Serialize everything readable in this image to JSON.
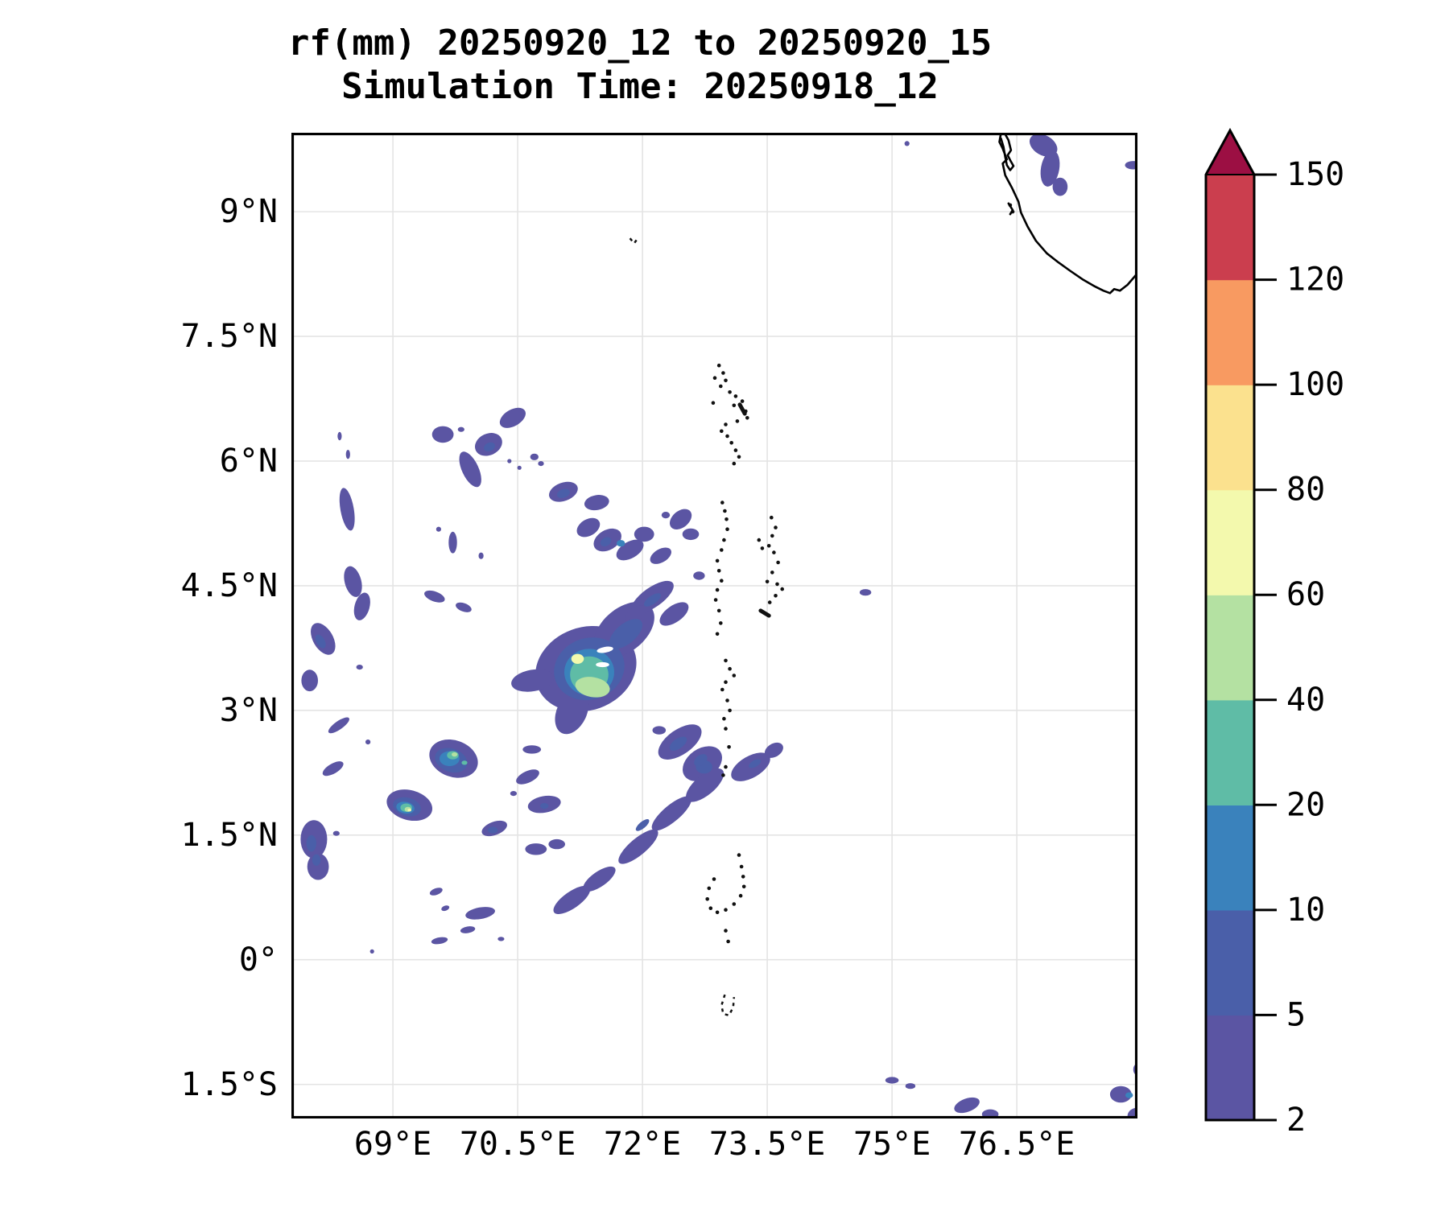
{
  "title": {
    "line1": "rf(mm) 20250920_12 to 20250920_15",
    "line2": "Simulation Time: 20250918_12"
  },
  "axes": {
    "x_ticks": [
      {
        "label": "69°E",
        "lon": 69.0
      },
      {
        "label": "70.5°E",
        "lon": 70.5
      },
      {
        "label": "72°E",
        "lon": 72.0
      },
      {
        "label": "73.5°E",
        "lon": 73.5
      },
      {
        "label": "75°E",
        "lon": 75.0
      },
      {
        "label": "76.5°E",
        "lon": 76.5
      }
    ],
    "y_ticks": [
      {
        "label": "9°N",
        "lat": 9.0
      },
      {
        "label": "7.5°N",
        "lat": 7.5
      },
      {
        "label": "6°N",
        "lat": 6.0
      },
      {
        "label": "4.5°N",
        "lat": 4.5
      },
      {
        "label": "3°N",
        "lat": 3.0
      },
      {
        "label": "1.5°N",
        "lat": 1.5
      },
      {
        "label": "0°",
        "lat": 0.0
      },
      {
        "label": "1.5°S",
        "lat": -1.5
      }
    ],
    "grid_color": "#e4e4e4",
    "frame_color": "#000000"
  },
  "colorbar": {
    "levels": [
      2,
      5,
      10,
      20,
      40,
      60,
      80,
      100,
      120,
      150
    ],
    "tick_labels": [
      "150",
      "120",
      "100",
      "80",
      "60",
      "40",
      "20",
      "10",
      "5",
      "2"
    ],
    "colors": [
      "#5b55a3",
      "#4a5fa9",
      "#3a82bc",
      "#5fbca6",
      "#b4e1a2",
      "#f3f9ad",
      "#fbe18e",
      "#f89a61",
      "#cb3e4e"
    ],
    "over_color": "#9c0f43",
    "outline_color": "#000000"
  },
  "chart_data": {
    "type": "heatmap",
    "variable": "rf",
    "units": "mm",
    "title": "rf(mm) 20250920_12 to 20250920_15",
    "subtitle": "Simulation Time: 20250918_12",
    "extent": {
      "lon_min": 67.78,
      "lon_max": 77.95,
      "lat_min": -1.91,
      "lat_max": 9.95
    },
    "levels": [
      2,
      5,
      10,
      20,
      40,
      60,
      80,
      100,
      120,
      150
    ],
    "max_cell": {
      "lon": 71.22,
      "lat": 3.62,
      "approx_mm": 70
    },
    "blob_format": "[lon, lat, rx_deg, ry_deg, rot_deg, level_index] level_index: 0=2-5mm,1=5-10mm,2=10-20mm,3=20-40mm,4=40-60mm,5=60-80mm,99=white hole",
    "blobs": [
      [
        76.82,
        9.8,
        0.18,
        0.12,
        -30,
        0
      ],
      [
        76.9,
        9.52,
        0.11,
        0.22,
        -10,
        0
      ],
      [
        77.02,
        9.3,
        0.09,
        0.11,
        0,
        0
      ],
      [
        75.18,
        9.82,
        0.03,
        0.03,
        0,
        0
      ],
      [
        77.9,
        9.56,
        0.1,
        0.05,
        0,
        0
      ],
      [
        74.68,
        4.42,
        0.07,
        0.04,
        0,
        0
      ],
      [
        69.6,
        6.32,
        0.13,
        0.1,
        0,
        0
      ],
      [
        69.82,
        6.38,
        0.04,
        0.03,
        0,
        0
      ],
      [
        70.15,
        6.2,
        0.17,
        0.13,
        25,
        0
      ],
      [
        70.44,
        6.52,
        0.17,
        0.1,
        30,
        0
      ],
      [
        69.93,
        5.9,
        0.1,
        0.23,
        25,
        0
      ],
      [
        70.7,
        6.05,
        0.05,
        0.04,
        0,
        0
      ],
      [
        70.78,
        5.97,
        0.035,
        0.03,
        0,
        0
      ],
      [
        71.05,
        5.63,
        0.18,
        0.11,
        20,
        0
      ],
      [
        71.45,
        5.5,
        0.15,
        0.09,
        10,
        0
      ],
      [
        68.45,
        5.42,
        0.08,
        0.26,
        10,
        0
      ],
      [
        68.36,
        6.3,
        0.025,
        0.05,
        0,
        0
      ],
      [
        68.46,
        6.08,
        0.025,
        0.055,
        0,
        0
      ],
      [
        69.72,
        5.02,
        0.05,
        0.13,
        0,
        0
      ],
      [
        69.55,
        5.18,
        0.03,
        0.03,
        0,
        0
      ],
      [
        70.4,
        6.0,
        0.025,
        0.025,
        0,
        0
      ],
      [
        70.52,
        5.92,
        0.025,
        0.025,
        0,
        0
      ],
      [
        70.06,
        4.86,
        0.03,
        0.04,
        0,
        0
      ],
      [
        71.35,
        5.2,
        0.15,
        0.1,
        30,
        0
      ],
      [
        71.58,
        5.05,
        0.18,
        0.12,
        30,
        0
      ],
      [
        71.85,
        4.93,
        0.18,
        0.1,
        30,
        0
      ],
      [
        72.02,
        5.12,
        0.12,
        0.09,
        0,
        0
      ],
      [
        72.22,
        4.86,
        0.14,
        0.08,
        30,
        0
      ],
      [
        72.46,
        5.3,
        0.15,
        0.1,
        40,
        0
      ],
      [
        72.58,
        5.12,
        0.1,
        0.07,
        0,
        0
      ],
      [
        72.68,
        4.62,
        0.07,
        0.05,
        0,
        0
      ],
      [
        72.28,
        5.35,
        0.05,
        0.04,
        0,
        0
      ],
      [
        68.52,
        4.55,
        0.1,
        0.19,
        15,
        0
      ],
      [
        68.63,
        4.25,
        0.09,
        0.17,
        -15,
        0
      ],
      [
        69.5,
        4.37,
        0.13,
        0.06,
        -20,
        0
      ],
      [
        69.85,
        4.24,
        0.1,
        0.05,
        -20,
        0
      ],
      [
        68.16,
        3.86,
        0.12,
        0.21,
        30,
        0
      ],
      [
        68.0,
        3.36,
        0.1,
        0.13,
        0,
        0
      ],
      [
        68.6,
        3.52,
        0.04,
        0.03,
        0,
        0
      ],
      [
        71.32,
        3.5,
        0.62,
        0.5,
        20,
        0
      ],
      [
        71.78,
        3.97,
        0.42,
        0.26,
        40,
        0
      ],
      [
        70.68,
        3.36,
        0.26,
        0.13,
        10,
        0
      ],
      [
        71.15,
        2.98,
        0.18,
        0.28,
        -25,
        0
      ],
      [
        72.12,
        4.36,
        0.3,
        0.12,
        35,
        0
      ],
      [
        72.38,
        4.16,
        0.2,
        0.1,
        35,
        0
      ],
      [
        71.92,
        4.16,
        0.14,
        0.08,
        35,
        0
      ],
      [
        72.45,
        2.62,
        0.3,
        0.15,
        35,
        0
      ],
      [
        72.72,
        2.36,
        0.26,
        0.18,
        35,
        0
      ],
      [
        73.3,
        2.32,
        0.26,
        0.13,
        30,
        0
      ],
      [
        73.58,
        2.52,
        0.12,
        0.08,
        30,
        0
      ],
      [
        72.2,
        2.76,
        0.08,
        0.05,
        0,
        0
      ],
      [
        71.15,
        0.72,
        0.26,
        0.1,
        35,
        0
      ],
      [
        71.48,
        0.97,
        0.23,
        0.09,
        35,
        0
      ],
      [
        71.95,
        1.36,
        0.3,
        0.1,
        40,
        0
      ],
      [
        72.35,
        1.76,
        0.3,
        0.1,
        40,
        0
      ],
      [
        72.75,
        2.1,
        0.28,
        0.12,
        40,
        0
      ],
      [
        70.82,
        1.87,
        0.2,
        0.1,
        10,
        0
      ],
      [
        70.72,
        1.33,
        0.13,
        0.07,
        0,
        0
      ],
      [
        70.97,
        1.39,
        0.1,
        0.06,
        0,
        0
      ],
      [
        70.22,
        1.58,
        0.16,
        0.08,
        20,
        0
      ],
      [
        70.05,
        0.56,
        0.18,
        0.07,
        10,
        0
      ],
      [
        70.62,
        2.2,
        0.15,
        0.07,
        25,
        0
      ],
      [
        70.67,
        2.53,
        0.11,
        0.05,
        0,
        0
      ],
      [
        70.45,
        2.0,
        0.04,
        0.03,
        0,
        0
      ],
      [
        69.73,
        2.42,
        0.3,
        0.22,
        -20,
        0
      ],
      [
        69.2,
        1.86,
        0.28,
        0.18,
        -15,
        0
      ],
      [
        68.05,
        1.45,
        0.16,
        0.23,
        0,
        0
      ],
      [
        68.1,
        1.12,
        0.13,
        0.16,
        0,
        0
      ],
      [
        68.32,
        1.52,
        0.04,
        0.03,
        0,
        0
      ],
      [
        68.35,
        2.82,
        0.15,
        0.05,
        35,
        0
      ],
      [
        68.28,
        2.3,
        0.14,
        0.06,
        30,
        0
      ],
      [
        68.7,
        2.62,
        0.03,
        0.03,
        0,
        0
      ],
      [
        69.52,
        0.82,
        0.08,
        0.04,
        20,
        0
      ],
      [
        69.63,
        0.62,
        0.05,
        0.03,
        20,
        0
      ],
      [
        69.9,
        0.36,
        0.09,
        0.04,
        10,
        0
      ],
      [
        69.56,
        0.23,
        0.1,
        0.04,
        10,
        0
      ],
      [
        68.75,
        0.1,
        0.025,
        0.025,
        0,
        0
      ],
      [
        70.3,
        0.25,
        0.04,
        0.025,
        0,
        0
      ],
      [
        75.0,
        -1.45,
        0.08,
        0.04,
        0,
        0
      ],
      [
        75.22,
        -1.52,
        0.06,
        0.035,
        0,
        0
      ],
      [
        75.9,
        -1.75,
        0.16,
        0.08,
        20,
        0
      ],
      [
        76.18,
        -1.86,
        0.1,
        0.06,
        0,
        0
      ],
      [
        77.75,
        -1.62,
        0.13,
        0.1,
        0,
        0
      ],
      [
        77.95,
        -1.88,
        0.12,
        0.1,
        0,
        0
      ],
      [
        77.95,
        -1.32,
        0.05,
        0.07,
        0,
        0
      ],
      [
        70.16,
        6.17,
        0.07,
        0.05,
        25,
        1
      ],
      [
        71.05,
        5.61,
        0.08,
        0.05,
        20,
        1
      ],
      [
        71.56,
        5.03,
        0.07,
        0.05,
        30,
        1
      ],
      [
        68.13,
        3.83,
        0.05,
        0.09,
        30,
        1
      ],
      [
        71.36,
        3.5,
        0.43,
        0.37,
        20,
        1
      ],
      [
        71.8,
        3.92,
        0.24,
        0.12,
        40,
        1
      ],
      [
        72.12,
        4.33,
        0.12,
        0.05,
        35,
        1
      ],
      [
        72.43,
        2.6,
        0.12,
        0.06,
        35,
        1
      ],
      [
        72.74,
        2.32,
        0.1,
        0.08,
        0,
        1
      ],
      [
        73.35,
        2.36,
        0.08,
        0.04,
        30,
        1
      ],
      [
        72.0,
        1.62,
        0.1,
        0.04,
        40,
        1
      ],
      [
        72.7,
        2.4,
        0.09,
        0.06,
        40,
        1
      ],
      [
        70.82,
        1.85,
        0.05,
        0.035,
        0,
        1
      ],
      [
        70.2,
        1.56,
        0.06,
        0.04,
        0,
        1
      ],
      [
        69.7,
        2.4,
        0.2,
        0.14,
        -20,
        1
      ],
      [
        69.17,
        1.84,
        0.17,
        0.11,
        -15,
        1
      ],
      [
        68.02,
        1.4,
        0.06,
        0.1,
        0,
        1
      ],
      [
        68.08,
        1.2,
        0.05,
        0.07,
        0,
        1
      ],
      [
        71.74,
        5.01,
        0.05,
        0.04,
        0,
        2
      ],
      [
        71.36,
        3.46,
        0.3,
        0.28,
        0,
        2
      ],
      [
        69.68,
        2.42,
        0.12,
        0.09,
        0,
        2
      ],
      [
        69.15,
        1.83,
        0.11,
        0.07,
        -10,
        2
      ],
      [
        77.85,
        -1.63,
        0.045,
        0.035,
        0,
        2
      ],
      [
        71.36,
        3.43,
        0.23,
        0.22,
        0,
        3
      ],
      [
        69.72,
        2.46,
        0.07,
        0.05,
        0,
        3
      ],
      [
        69.86,
        2.37,
        0.035,
        0.025,
        0,
        3
      ],
      [
        69.16,
        1.83,
        0.07,
        0.05,
        0,
        3
      ],
      [
        71.4,
        3.28,
        0.21,
        0.12,
        -10,
        4
      ],
      [
        69.74,
        2.47,
        0.035,
        0.025,
        0,
        4
      ],
      [
        69.18,
        1.81,
        0.04,
        0.03,
        0,
        4
      ],
      [
        71.22,
        3.62,
        0.075,
        0.06,
        0,
        5
      ],
      [
        69.2,
        1.8,
        0.022,
        0.016,
        0,
        5
      ],
      [
        71.55,
        3.73,
        0.1,
        0.035,
        10,
        99
      ],
      [
        71.52,
        3.55,
        0.08,
        0.03,
        0,
        99
      ]
    ]
  },
  "map": {
    "coast_color": "#000000",
    "coastline_main": [
      [
        76.31,
        9.95
      ],
      [
        76.29,
        9.84
      ],
      [
        76.33,
        9.76
      ],
      [
        76.38,
        9.63
      ],
      [
        76.33,
        9.58
      ],
      [
        76.36,
        9.44
      ],
      [
        76.44,
        9.29
      ],
      [
        76.52,
        9.12
      ],
      [
        76.55,
        8.99
      ],
      [
        76.63,
        8.82
      ],
      [
        76.73,
        8.65
      ],
      [
        76.86,
        8.5
      ],
      [
        77.0,
        8.39
      ],
      [
        77.14,
        8.29
      ],
      [
        77.3,
        8.18
      ],
      [
        77.44,
        8.1
      ],
      [
        77.54,
        8.05
      ],
      [
        77.62,
        8.02
      ],
      [
        77.67,
        8.07
      ],
      [
        77.74,
        8.05
      ],
      [
        77.83,
        8.12
      ],
      [
        77.95,
        8.26
      ]
    ],
    "coastline_lagoon": [
      [
        76.35,
        9.95
      ],
      [
        76.4,
        9.86
      ],
      [
        76.43,
        9.74
      ],
      [
        76.39,
        9.68
      ],
      [
        76.42,
        9.62
      ],
      [
        76.46,
        9.55
      ],
      [
        76.42,
        9.5
      ],
      [
        76.38,
        9.56
      ],
      [
        76.36,
        9.66
      ],
      [
        76.34,
        9.78
      ],
      [
        76.31,
        9.88
      ]
    ],
    "coastline_fragment": [
      [
        76.4,
        9.1
      ],
      [
        76.45,
        9.02
      ],
      [
        76.42,
        8.97
      ]
    ],
    "island_dots": [
      [
        72.92,
        7.15
      ],
      [
        72.97,
        7.06
      ],
      [
        73.0,
        6.97
      ],
      [
        72.94,
        6.9
      ],
      [
        73.05,
        6.83
      ],
      [
        73.12,
        6.78
      ],
      [
        73.2,
        6.72
      ],
      [
        73.1,
        6.67
      ],
      [
        73.24,
        6.6
      ],
      [
        73.26,
        6.52
      ],
      [
        73.14,
        6.48
      ],
      [
        73.0,
        6.44
      ],
      [
        72.95,
        6.36
      ],
      [
        73.02,
        6.3
      ],
      [
        73.07,
        6.22
      ],
      [
        73.12,
        6.13
      ],
      [
        73.16,
        6.05
      ],
      [
        73.1,
        5.97
      ],
      [
        72.87,
        7.0
      ],
      [
        72.85,
        6.7
      ],
      [
        72.96,
        5.5
      ],
      [
        72.99,
        5.4
      ],
      [
        73.01,
        5.3
      ],
      [
        73.02,
        5.18
      ],
      [
        72.98,
        5.05
      ],
      [
        72.95,
        4.93
      ],
      [
        72.9,
        4.8
      ],
      [
        72.92,
        4.68
      ],
      [
        72.95,
        4.56
      ],
      [
        72.9,
        4.45
      ],
      [
        72.88,
        4.33
      ],
      [
        72.92,
        4.2
      ],
      [
        72.94,
        4.05
      ],
      [
        72.9,
        3.92
      ],
      [
        73.55,
        5.32
      ],
      [
        73.6,
        5.2
      ],
      [
        73.56,
        5.1
      ],
      [
        73.52,
        4.98
      ],
      [
        73.58,
        4.9
      ],
      [
        73.63,
        4.78
      ],
      [
        73.56,
        4.66
      ],
      [
        73.5,
        4.55
      ],
      [
        73.62,
        4.52
      ],
      [
        73.68,
        4.46
      ],
      [
        73.6,
        4.38
      ],
      [
        73.53,
        4.3
      ],
      [
        73.4,
        5.05
      ],
      [
        73.44,
        4.95
      ],
      [
        73.0,
        3.6
      ],
      [
        73.05,
        3.5
      ],
      [
        73.1,
        3.42
      ],
      [
        73.0,
        3.34
      ],
      [
        72.96,
        3.25
      ],
      [
        73.02,
        3.12
      ],
      [
        73.05,
        3.0
      ],
      [
        72.98,
        2.9
      ],
      [
        73.0,
        2.78
      ],
      [
        73.04,
        2.56
      ],
      [
        73.0,
        2.32
      ],
      [
        72.97,
        2.22
      ],
      [
        73.0,
        0.35
      ],
      [
        73.03,
        0.22
      ],
      [
        73.16,
        1.26
      ],
      [
        73.19,
        1.12
      ],
      [
        73.21,
        1.0
      ],
      [
        73.22,
        0.88
      ],
      [
        73.18,
        0.77
      ],
      [
        73.1,
        0.67
      ],
      [
        73.0,
        0.6
      ],
      [
        72.9,
        0.57
      ],
      [
        72.82,
        0.62
      ],
      [
        72.78,
        0.73
      ],
      [
        72.8,
        0.86
      ],
      [
        72.86,
        0.97
      ],
      [
        76.42,
        9.08
      ],
      [
        76.45,
        9.0
      ]
    ],
    "island_dashes": [
      [
        [
          73.17,
          6.68
        ],
        [
          73.23,
          6.57
        ]
      ],
      [
        [
          73.42,
          4.2
        ],
        [
          73.52,
          4.14
        ]
      ]
    ],
    "island_rings": [
      [
        [
          72.99,
          -0.42
        ],
        [
          72.95,
          -0.55
        ],
        [
          72.97,
          -0.65
        ],
        [
          73.04,
          -0.67
        ],
        [
          73.09,
          -0.57
        ],
        [
          73.1,
          -0.45
        ]
      ],
      [
        [
          71.85,
          8.68
        ],
        [
          71.9,
          8.62
        ],
        [
          71.95,
          8.69
        ]
      ]
    ]
  }
}
